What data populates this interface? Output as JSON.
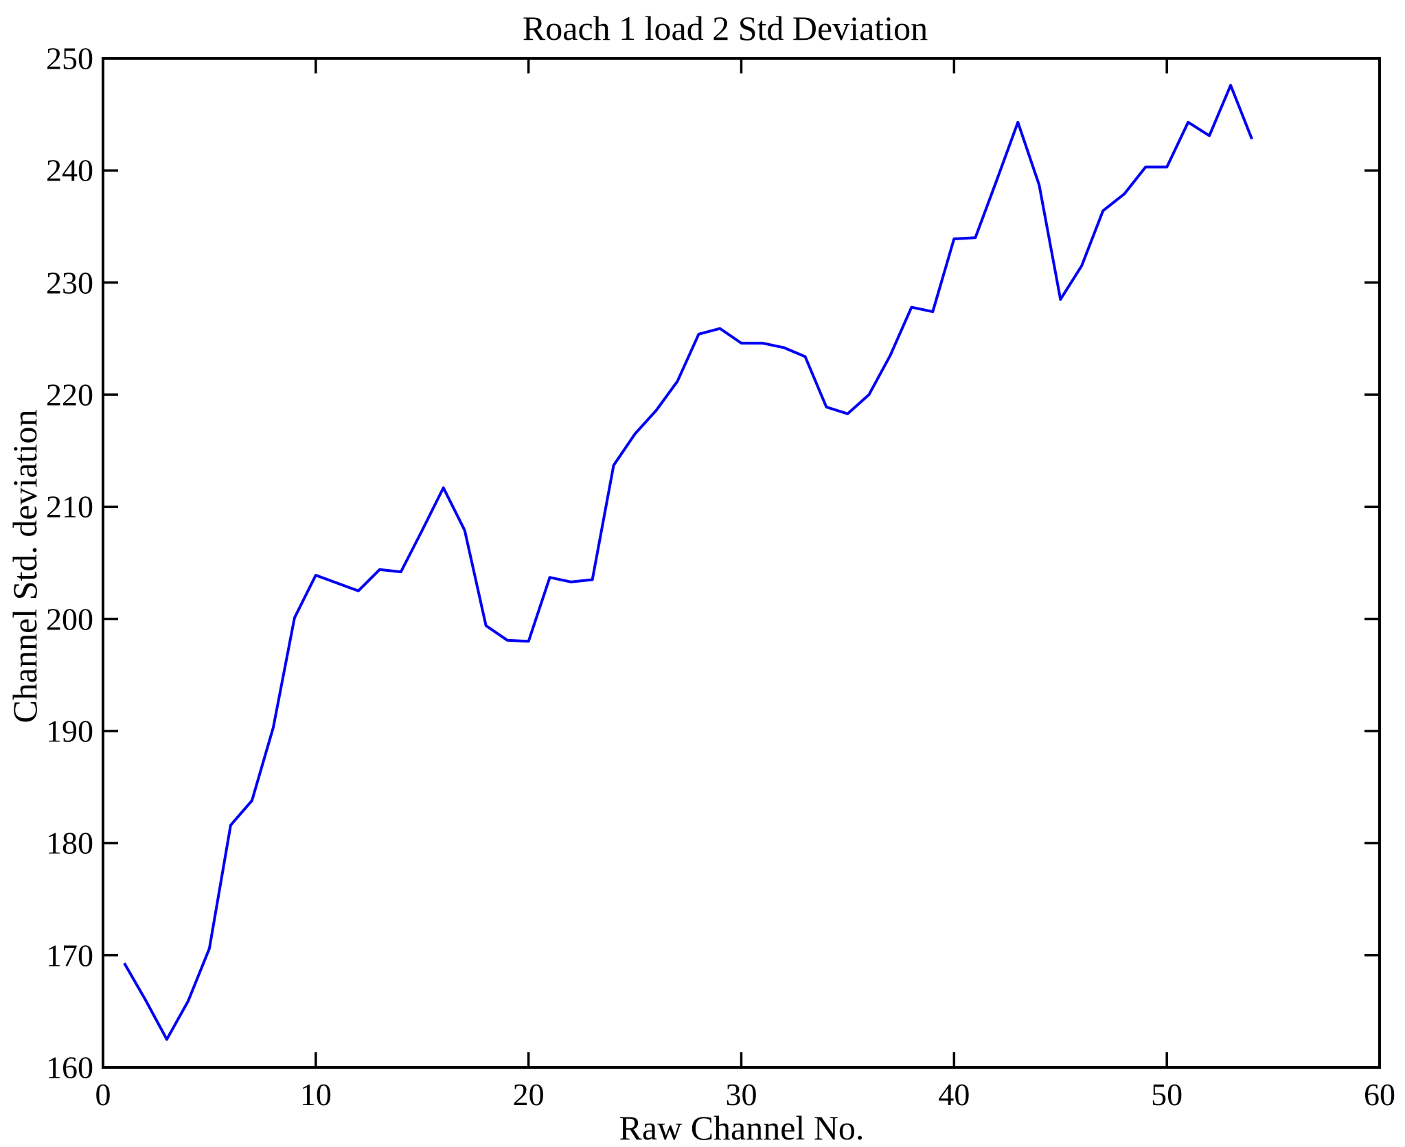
{
  "chart_data": {
    "type": "line",
    "title": "Roach 1 load 2 Std Deviation",
    "xlabel": "Raw Channel No.",
    "ylabel": "Channel Std. deviation",
    "xlim": [
      0,
      60
    ],
    "ylim": [
      160,
      250
    ],
    "x_ticks": [
      0,
      10,
      20,
      30,
      40,
      50,
      60
    ],
    "y_ticks": [
      160,
      170,
      180,
      190,
      200,
      210,
      220,
      230,
      240,
      250
    ],
    "grid": false,
    "legend": null,
    "line_color": "#0000f2",
    "x": [
      1,
      2,
      3,
      4,
      5,
      6,
      7,
      8,
      9,
      10,
      11,
      12,
      13,
      14,
      15,
      16,
      17,
      18,
      19,
      20,
      21,
      22,
      23,
      24,
      25,
      26,
      27,
      28,
      29,
      30,
      31,
      32,
      33,
      34,
      35,
      36,
      37,
      38,
      39,
      40,
      41,
      42,
      43,
      44,
      45,
      46,
      47,
      48,
      49,
      50,
      51,
      52,
      53,
      54
    ],
    "values": [
      169.3,
      166.0,
      162.5,
      165.9,
      170.6,
      181.6,
      183.8,
      190.3,
      200.1,
      203.9,
      203.2,
      202.5,
      204.4,
      204.2,
      207.9,
      211.7,
      207.9,
      199.4,
      198.1,
      198.0,
      203.7,
      203.3,
      203.5,
      213.7,
      216.5,
      218.6,
      221.2,
      225.4,
      225.9,
      224.6,
      224.6,
      224.2,
      223.4,
      218.9,
      218.3,
      220.0,
      223.5,
      227.8,
      227.4,
      233.9,
      234.0,
      239.1,
      244.3,
      238.7,
      228.5,
      231.5,
      236.4,
      237.9,
      240.3,
      240.3,
      244.3,
      243.1,
      247.6,
      242.8
    ]
  }
}
